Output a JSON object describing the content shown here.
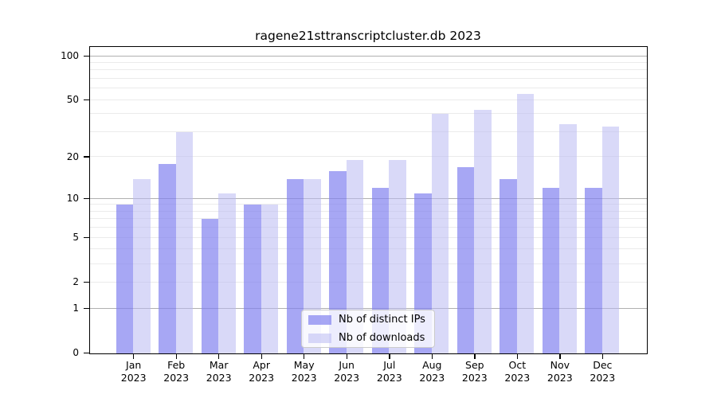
{
  "title": "ragene21sttranscriptcluster.db 2023",
  "chart_data": {
    "type": "bar",
    "title": "ragene21sttranscriptcluster.db 2023",
    "categories": [
      "Jan",
      "Feb",
      "Mar",
      "Apr",
      "May",
      "Jun",
      "Jul",
      "Aug",
      "Sep",
      "Oct",
      "Nov",
      "Dec"
    ],
    "category_year": "2023",
    "series": [
      {
        "name": "Nb of distinct IPs",
        "color": "#8282f0",
        "values": [
          9,
          18,
          7,
          9,
          14,
          16,
          12,
          11,
          17,
          14,
          12,
          12
        ]
      },
      {
        "name": "Nb of downloads",
        "color": "#b9b9f2",
        "values": [
          14,
          30,
          11,
          9,
          14,
          19,
          19,
          40,
          43,
          55,
          34,
          33
        ]
      }
    ],
    "xlabel": "",
    "ylabel": "",
    "yticks": [
      0,
      1,
      2,
      5,
      10,
      20,
      50,
      100
    ],
    "scale": "log1p",
    "ylim": [
      0,
      115
    ],
    "grid": true,
    "grid_major_values": [
      1,
      10,
      100
    ],
    "grid_minor_values": [
      2,
      3,
      4,
      5,
      6,
      7,
      8,
      9,
      20,
      30,
      40,
      50,
      60,
      70,
      80,
      90
    ],
    "legend_position": "inside-bottom-center"
  },
  "colors": {
    "bar_distinct_ips": "#8282f0",
    "bar_downloads": "#b9b9f2",
    "grid_major": "#b0b0b0",
    "grid_minor": "#ebebeb",
    "spine": "#000000",
    "background": "#ffffff"
  }
}
